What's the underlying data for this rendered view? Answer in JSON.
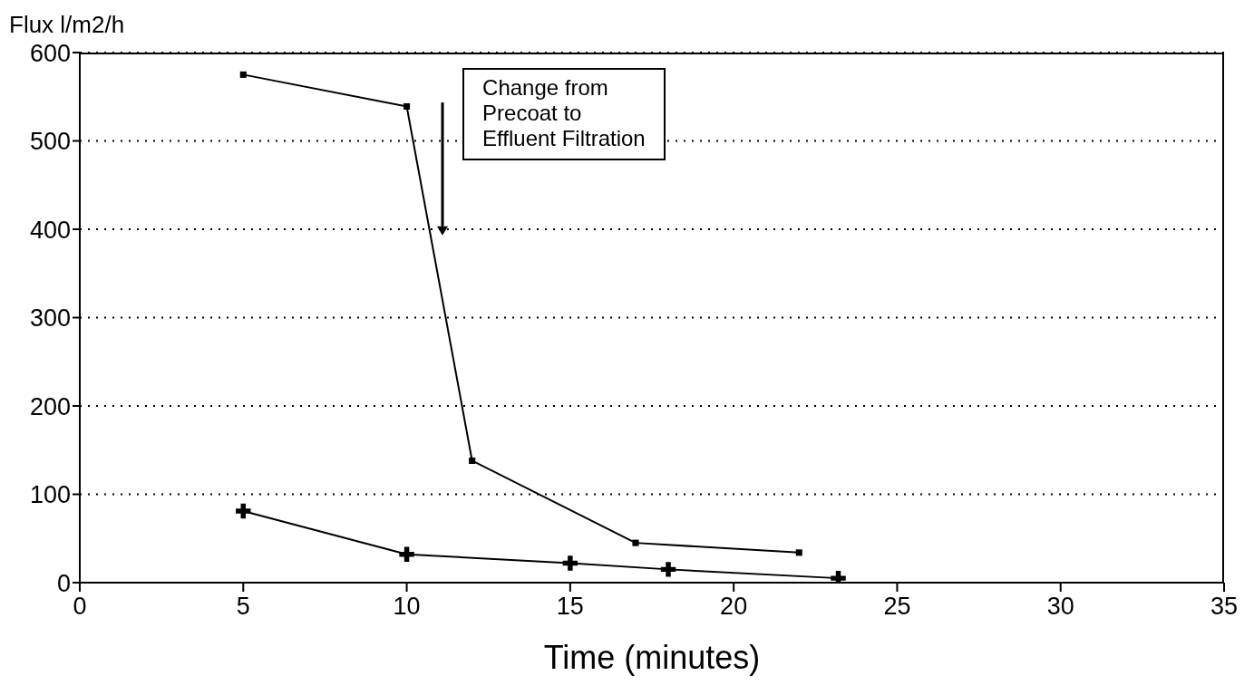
{
  "chart_data": {
    "type": "line",
    "ylabel": "Flux l/m2/h",
    "xlabel": "Time (minutes)",
    "xlim": [
      0,
      35
    ],
    "xticks": [
      0,
      5,
      10,
      15,
      20,
      25,
      30,
      35
    ],
    "ylim": [
      0,
      600
    ],
    "yticks": [
      0,
      100,
      200,
      300,
      400,
      500,
      600
    ],
    "grid": "y",
    "legend": false,
    "line_style": "solid",
    "series": [
      {
        "color": "#000000",
        "marker": "square",
        "x": [
          5,
          10,
          12,
          17,
          22
        ],
        "values": [
          575,
          539,
          138,
          45,
          34
        ]
      },
      {
        "color": "#000000",
        "marker": "cross",
        "x": [
          5,
          10,
          15,
          18,
          23.2
        ],
        "values": [
          81,
          32,
          22,
          15,
          5
        ]
      }
    ],
    "annotations": [
      "Change from\nPrecoat to\nEffluent Filtration"
    ]
  }
}
